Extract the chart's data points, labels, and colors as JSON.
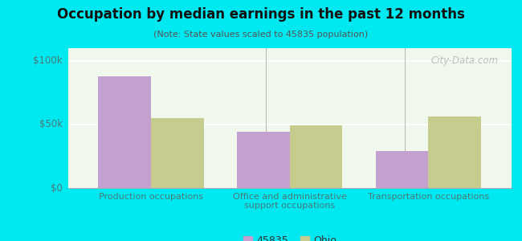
{
  "title": "Occupation by median earnings in the past 12 months",
  "subtitle": "(Note: State values scaled to 45835 population)",
  "categories": [
    "Production occupations",
    "Office and administrative\nsupport occupations",
    "Transportation occupations"
  ],
  "values_45835": [
    88000,
    44000,
    29000
  ],
  "values_ohio": [
    55000,
    49000,
    56000
  ],
  "color_45835": "#c4a0d0",
  "color_ohio": "#c5cc8e",
  "background_outer": "#00e8f0",
  "background_plot_color": "#e8f5e8",
  "yticks": [
    0,
    50000,
    100000
  ],
  "ytick_labels": [
    "$0",
    "$50k",
    "$100k"
  ],
  "ylim": [
    0,
    110000
  ],
  "legend_labels": [
    "45835",
    "Ohio"
  ],
  "bar_width": 0.38,
  "watermark": "City-Data.com"
}
